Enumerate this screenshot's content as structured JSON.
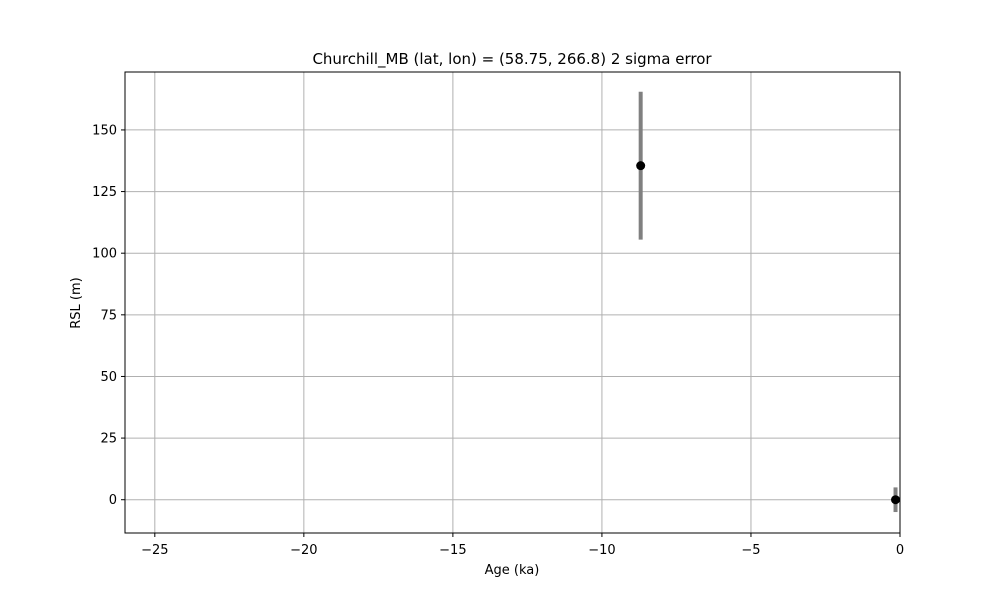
{
  "chart_data": {
    "type": "scatter",
    "title": "Churchill_MB (lat, lon) = (58.75, 266.8)  2 sigma error",
    "xlabel": "Age (ka)",
    "ylabel": "RSL (m)",
    "xlim": [
      -26,
      0
    ],
    "ylim": [
      -13.5,
      173.5
    ],
    "xticks": [
      -25,
      -20,
      -15,
      -10,
      -5,
      0
    ],
    "xtick_labels": [
      "−25",
      "−20",
      "−15",
      "−10",
      "−5",
      "0"
    ],
    "yticks": [
      0,
      25,
      50,
      75,
      100,
      125,
      150
    ],
    "ytick_labels": [
      "0",
      "25",
      "50",
      "75",
      "100",
      "125",
      "150"
    ],
    "grid": true,
    "points": [
      {
        "x": -8.7,
        "y": 135.5,
        "error": 30
      },
      {
        "x": -0.15,
        "y": 0,
        "error": 5
      }
    ],
    "colors": {
      "marker": "#000000",
      "errorbar": "#808080",
      "grid": "#b0b0b0",
      "frame": "#000000"
    }
  }
}
